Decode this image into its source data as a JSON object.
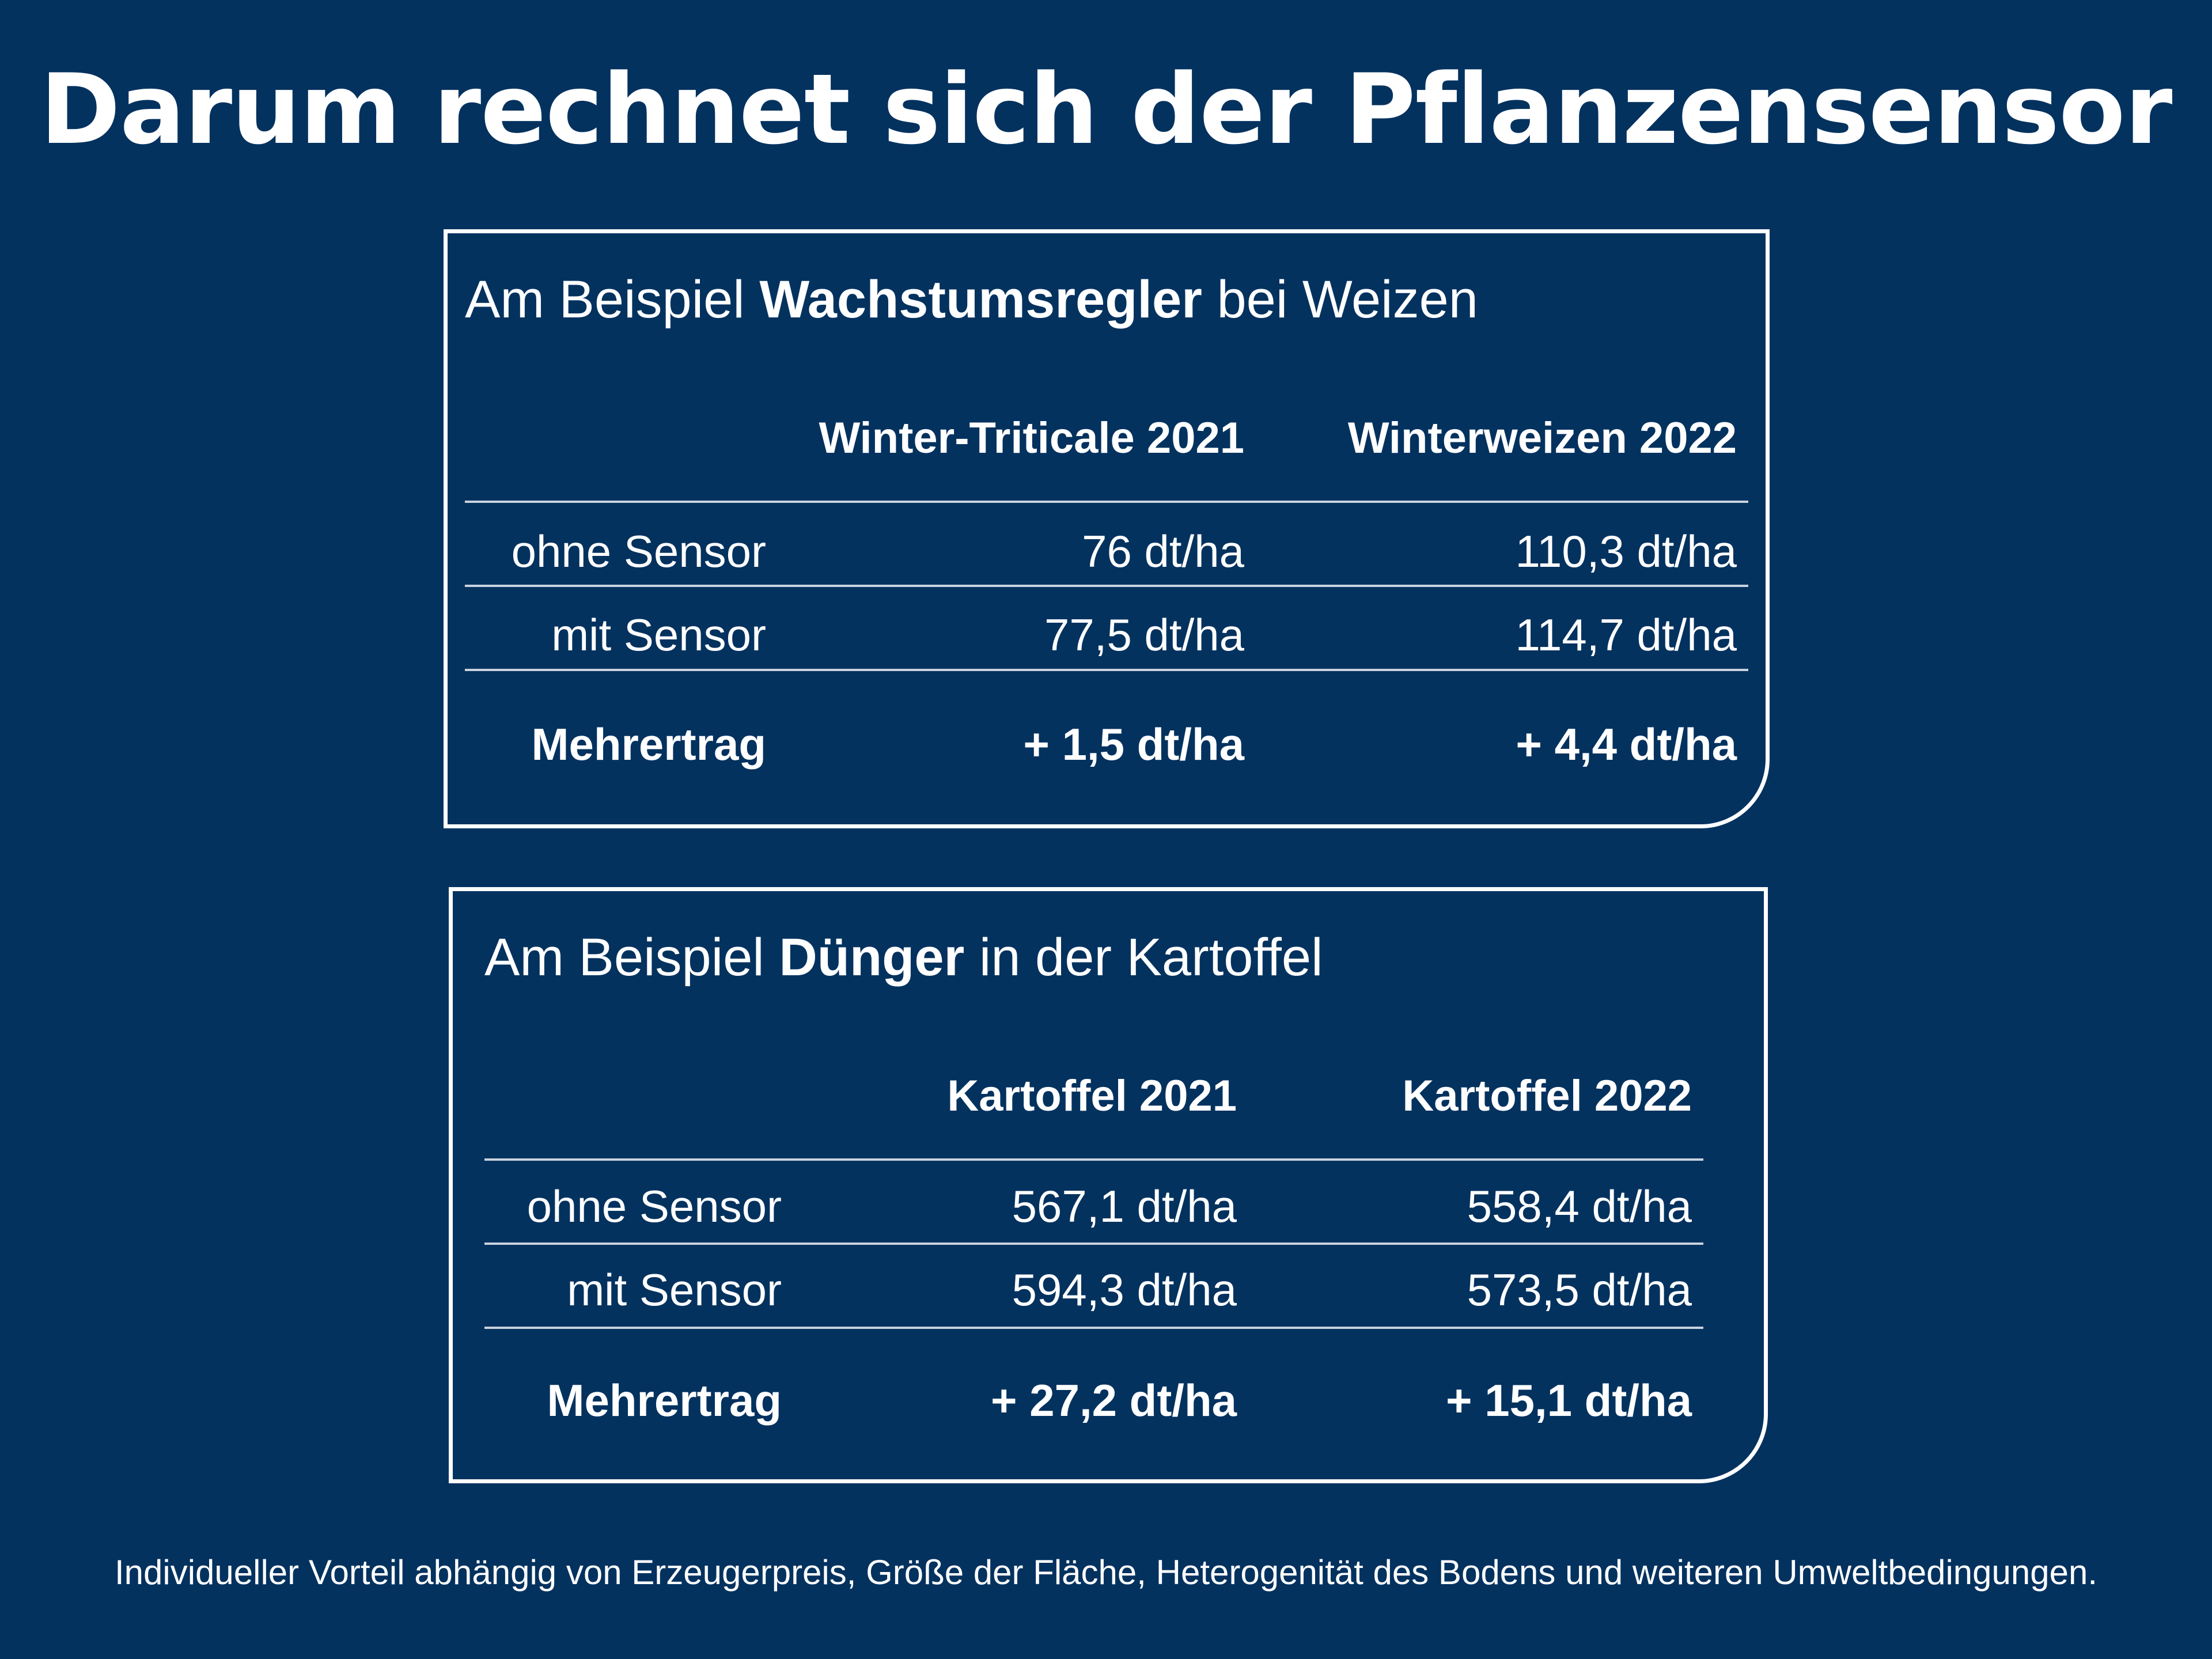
{
  "page": {
    "title": "Darum rechnet sich der Pflanzensensor",
    "footnote": "Individueller Vorteil abhängig von Erzeugerpreis, Größe der Fläche, Heterogenität des Bodens und weiteren Umweltbedingungen."
  },
  "cards": [
    {
      "title_prefix": "Am Beispiel ",
      "title_bold": "Wachstumsregler",
      "title_suffix": " bei Weizen",
      "columns": [
        "Winter-Triticale 2021",
        "Winterweizen 2022"
      ],
      "rows": [
        {
          "label": "ohne Sensor",
          "values": [
            "76 dt/ha",
            "110,3 dt/ha"
          ]
        },
        {
          "label": "mit Sensor",
          "values": [
            "77,5 dt/ha",
            "114,7 dt/ha"
          ]
        },
        {
          "label": "Mehrertrag",
          "values": [
            "+ 1,5 dt/ha",
            "+ 4,4 dt/ha"
          ]
        }
      ]
    },
    {
      "title_prefix": "Am Beispiel ",
      "title_bold": "Dünger",
      "title_suffix": " in der Kartoffel",
      "columns": [
        "Kartoffel 2021",
        "Kartoffel 2022"
      ],
      "rows": [
        {
          "label": "ohne Sensor",
          "values": [
            "567,1 dt/ha",
            "558,4 dt/ha"
          ]
        },
        {
          "label": "mit Sensor",
          "values": [
            "594,3 dt/ha",
            "573,5 dt/ha"
          ]
        },
        {
          "label": "Mehrertrag",
          "values": [
            "+ 27,2 dt/ha",
            "+ 15,1 dt/ha"
          ]
        }
      ]
    }
  ]
}
